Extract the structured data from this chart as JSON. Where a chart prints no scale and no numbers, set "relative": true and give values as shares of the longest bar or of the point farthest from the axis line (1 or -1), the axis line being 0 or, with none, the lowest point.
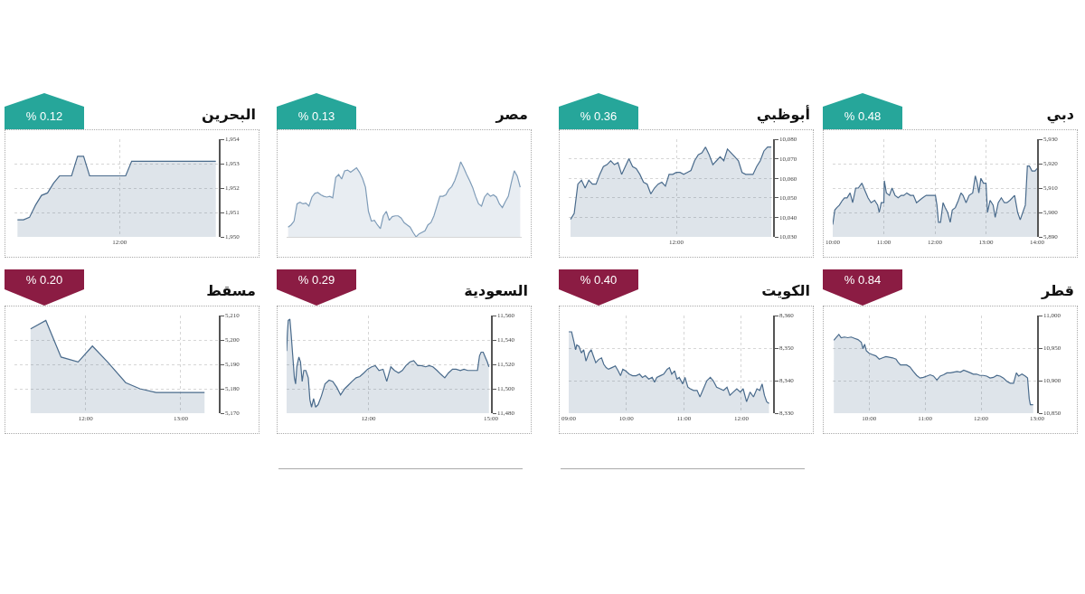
{
  "chart_data": [
    {
      "type": "area",
      "title": "البحرين",
      "annotations": [
        "% 0.12"
      ],
      "color": "#4a6b8c",
      "categories": [
        null,
        null,
        null,
        null,
        null,
        null,
        null,
        null,
        null,
        null,
        null,
        null,
        null,
        null,
        null,
        null,
        null,
        "12:00",
        null,
        null,
        null,
        null,
        null,
        null,
        null,
        null,
        null,
        null,
        null,
        null,
        null,
        null,
        null,
        null
      ],
      "values": [
        1950.7,
        1950.7,
        1950.8,
        1951.3,
        1951.7,
        1951.8,
        1952.2,
        1952.5,
        1952.5,
        1952.5,
        1953.3,
        1953.3,
        1952.5,
        1952.5,
        1952.5,
        1952.5,
        1952.5,
        1952.5,
        1952.5,
        1953.1,
        1953.1,
        1953.1,
        1953.1,
        1953.1,
        1953.1,
        1953.1,
        1953.1,
        1953.1,
        1953.1,
        1953.1,
        1953.1,
        1953.1,
        1953.1,
        1953.1
      ],
      "ylim": [
        1950,
        1954
      ],
      "yticks": [
        {
          "value": 1950,
          "label": "1,950"
        },
        {
          "value": 1951,
          "label": "1,951"
        },
        {
          "value": 1952,
          "label": "1,952"
        },
        {
          "value": 1953,
          "label": "1,953"
        },
        {
          "value": 1954,
          "label": "1,954"
        }
      ],
      "grid": true
    },
    {
      "type": "area",
      "title": "مصر",
      "annotations": [
        "% 0.13"
      ],
      "color": "#7f9cb8",
      "relative": true,
      "categories": [
        null,
        null,
        null,
        null,
        null,
        null,
        null,
        null,
        null,
        null,
        null,
        null,
        null,
        null,
        null,
        null,
        null,
        null,
        null,
        null,
        null,
        null,
        null,
        null,
        null,
        null,
        null,
        null,
        null,
        null,
        null,
        null,
        null,
        null,
        null,
        null,
        null,
        null,
        null,
        null,
        null,
        null,
        null,
        null,
        null,
        null,
        null,
        null,
        null,
        null,
        null,
        null,
        null,
        null,
        null,
        null,
        null,
        null,
        null,
        null,
        null,
        null,
        null,
        null,
        null,
        null,
        null,
        null,
        null,
        null,
        null,
        null,
        null,
        null,
        null,
        null,
        null,
        null,
        null
      ],
      "values": [
        0.13,
        0.16,
        0.21,
        0.44,
        0.46,
        0.44,
        0.45,
        0.41,
        0.53,
        0.58,
        0.59,
        0.56,
        0.54,
        0.53,
        0.54,
        0.52,
        0.79,
        0.83,
        0.77,
        0.88,
        0.89,
        0.86,
        0.89,
        0.92,
        0.86,
        0.78,
        0.66,
        0.34,
        0.21,
        0.22,
        0.16,
        0.11,
        0.28,
        0.34,
        0.22,
        0.27,
        0.28,
        0.28,
        0.25,
        0.19,
        0.16,
        0.13,
        0.06,
        0,
        0.04,
        0.06,
        0.08,
        0.16,
        0.19,
        0.28,
        0.41,
        0.54,
        0.54,
        0.56,
        0.63,
        0.67,
        0.75,
        0.86,
        1,
        0.92,
        0.83,
        0.75,
        0.66,
        0.54,
        0.44,
        0.41,
        0.53,
        0.58,
        0.54,
        0.56,
        0.53,
        0.44,
        0.39,
        0.47,
        0.54,
        0.72,
        0.88,
        0.81,
        0.66
      ]
    },
    {
      "type": "area",
      "title": "أبوظبي",
      "annotations": [
        "% 0.36"
      ],
      "color": "#4a6b8c",
      "categories": [
        null,
        null,
        null,
        null,
        null,
        null,
        null,
        null,
        null,
        null,
        null,
        null,
        null,
        null,
        null,
        null,
        null,
        null,
        null,
        null,
        null,
        null,
        null,
        null,
        null,
        null,
        null,
        null,
        null,
        "12:00",
        null,
        null,
        null,
        null,
        null,
        null,
        null,
        null,
        null,
        null,
        null,
        null,
        null,
        null,
        null,
        null,
        null,
        null,
        null,
        null,
        null,
        null,
        null,
        null,
        null,
        null
      ],
      "values": [
        10039,
        10042,
        10057,
        10059,
        10055,
        10059,
        10057,
        10057,
        10062,
        10066,
        10067,
        10069,
        10067,
        10068,
        10062,
        10066,
        10070,
        10066,
        10065,
        10062,
        10058,
        10057,
        10052,
        10055,
        10057,
        10058,
        10056,
        10062,
        10062,
        10063,
        10063,
        10062,
        10063,
        10064,
        10069,
        10072,
        10073,
        10076,
        10072,
        10067,
        10069,
        10071,
        10069,
        10075,
        10073,
        10071,
        10069,
        10063,
        10062,
        10062,
        10062,
        10066,
        10069,
        10074,
        10076,
        10076
      ],
      "ylim": [
        10030,
        10080
      ],
      "yticks": [
        {
          "value": 10030,
          "label": "10,030"
        },
        {
          "value": 10040,
          "label": "10,040"
        },
        {
          "value": 10050,
          "label": "10,050"
        },
        {
          "value": 10060,
          "label": "10,060"
        },
        {
          "value": 10070,
          "label": "10,070"
        },
        {
          "value": 10080,
          "label": "10,080"
        }
      ],
      "grid": true
    },
    {
      "type": "area",
      "title": "دبي",
      "annotations": [
        "% 0.48"
      ],
      "color": "#4a6b8c",
      "x": [
        10.0,
        10.04,
        10.08,
        10.13,
        10.19,
        10.23,
        10.28,
        10.34,
        10.39,
        10.45,
        10.5,
        10.57,
        10.63,
        10.69,
        10.75,
        10.82,
        10.88,
        10.91,
        10.95,
        11.0,
        11.01,
        11.05,
        11.11,
        11.16,
        11.22,
        11.28,
        11.34,
        11.39,
        11.45,
        11.52,
        11.58,
        11.64,
        11.7,
        11.76,
        11.83,
        11.92,
        12.01,
        12.04,
        12.07,
        12.11,
        12.16,
        12.2,
        12.25,
        12.3,
        12.34,
        12.4,
        12.46,
        12.51,
        12.55,
        12.61,
        12.67,
        12.74,
        12.79,
        12.83,
        12.86,
        12.9,
        12.95,
        13.0,
        13.03,
        13.08,
        13.14,
        13.18,
        13.24,
        13.3,
        13.36,
        13.41,
        13.47,
        13.56,
        13.62,
        13.67,
        13.72,
        13.77,
        13.81,
        13.85,
        13.9,
        13.96,
        14.0
      ],
      "values": [
        5895,
        5901,
        5902,
        5903,
        5905,
        5906,
        5906,
        5908,
        5904,
        5910,
        5910,
        5912,
        5909,
        5906,
        5904,
        5905,
        5903,
        5900,
        5904,
        5904,
        5913,
        5908,
        5907,
        5910,
        5907,
        5906,
        5907,
        5907,
        5908,
        5907,
        5907,
        5904,
        5905,
        5906,
        5907,
        5907,
        5907,
        5903,
        5896,
        5896,
        5904,
        5902,
        5900,
        5896,
        5901,
        5902,
        5905,
        5908,
        5907,
        5904,
        5907,
        5908,
        5915,
        5912,
        5908,
        5914,
        5912,
        5912,
        5900,
        5905,
        5903,
        5898,
        5904,
        5906,
        5904,
        5904,
        5905,
        5907,
        5900,
        5897,
        5900,
        5903,
        5919,
        5919,
        5917,
        5917,
        5918
      ],
      "xlim": [
        10,
        14
      ],
      "xticks": [
        {
          "value": 10,
          "label": "10:00"
        },
        {
          "value": 11,
          "label": "11:00"
        },
        {
          "value": 12,
          "label": "12:00"
        },
        {
          "value": 13,
          "label": "13:00"
        },
        {
          "value": 14,
          "label": "14:00"
        }
      ],
      "ylim": [
        5890,
        5930
      ],
      "yticks": [
        {
          "value": 5890,
          "label": "5,890"
        },
        {
          "value": 5900,
          "label": "5,900"
        },
        {
          "value": 5910,
          "label": "5,910"
        },
        {
          "value": 5920,
          "label": "5,920"
        },
        {
          "value": 5930,
          "label": "5,930"
        }
      ],
      "grid": true
    },
    {
      "type": "area",
      "title": "مسقط",
      "annotations": [
        "% 0.20"
      ],
      "color": "#4a6b8c",
      "x": [
        11.42,
        11.58,
        11.74,
        11.92,
        12.07,
        12.23,
        12.42,
        12.57,
        12.74,
        13.25
      ],
      "values": [
        5204.5,
        5208,
        5193,
        5191,
        5197.5,
        5191,
        5182.5,
        5180,
        5178.5,
        5178.5
      ],
      "xlim": [
        11.25,
        13.4
      ],
      "xticks": [
        {
          "value": 12,
          "label": "12:00"
        },
        {
          "value": 13,
          "label": "13:00"
        }
      ],
      "ylim": [
        5170,
        5210
      ],
      "yticks": [
        {
          "value": 5170,
          "label": "5,170"
        },
        {
          "value": 5180,
          "label": "5,180"
        },
        {
          "value": 5190,
          "label": "5,190"
        },
        {
          "value": 5200,
          "label": "5,200"
        },
        {
          "value": 5210,
          "label": "5,210"
        }
      ],
      "grid": true
    },
    {
      "type": "area",
      "title": "السعودية",
      "annotations": [
        "% 0.29"
      ],
      "color": "#4a6b8c",
      "x": [
        10.0,
        10.02,
        10.04,
        10.08,
        10.11,
        10.15,
        10.19,
        10.22,
        10.25,
        10.3,
        10.34,
        10.38,
        10.42,
        10.47,
        10.53,
        10.57,
        10.61,
        10.66,
        10.71,
        10.77,
        10.85,
        10.94,
        11.04,
        11.13,
        11.23,
        11.32,
        11.42,
        11.51,
        11.6,
        11.7,
        11.79,
        11.89,
        11.98,
        12.08,
        12.17,
        12.26,
        12.36,
        12.45,
        12.55,
        12.64,
        12.74,
        12.83,
        12.92,
        13.02,
        13.11,
        13.21,
        13.3,
        13.4,
        13.49,
        13.58,
        13.68,
        13.77,
        13.87,
        13.96,
        14.06,
        14.15,
        14.25,
        14.34,
        14.43,
        14.53,
        14.62,
        14.67,
        14.72,
        14.76,
        14.81,
        14.86,
        14.91,
        14.95
      ],
      "values": [
        11531,
        11546,
        11556,
        11557,
        11545,
        11527,
        11509,
        11504,
        11518,
        11526,
        11522,
        11506,
        11515,
        11515,
        11509,
        11491,
        11485,
        11492,
        11485,
        11487,
        11494,
        11504,
        11507,
        11506,
        11501,
        11495,
        11500,
        11503,
        11506,
        11509,
        11510,
        11513,
        11516,
        11518,
        11519,
        11515,
        11516,
        11506,
        11518,
        11515,
        11513,
        11515,
        11519,
        11522,
        11523,
        11519,
        11519,
        11518,
        11519,
        11518,
        11515,
        11512,
        11509,
        11513,
        11516,
        11516,
        11515,
        11516,
        11515,
        11515,
        11515,
        11515,
        11527,
        11530,
        11530,
        11526,
        11522,
        11518
      ],
      "xlim": [
        10,
        15
      ],
      "xticks": [
        {
          "value": 12,
          "label": "12:00"
        },
        {
          "value": 15,
          "label": "15:00"
        }
      ],
      "ylim": [
        11480,
        11560
      ],
      "yticks": [
        {
          "value": 11480,
          "label": "11,480"
        },
        {
          "value": 11500,
          "label": "11,500"
        },
        {
          "value": 11520,
          "label": "11,520"
        },
        {
          "value": 11540,
          "label": "11,540"
        },
        {
          "value": 11560,
          "label": "11,560"
        }
      ],
      "grid": true
    },
    {
      "type": "area",
      "title": "الكويت",
      "annotations": [
        "% 0.40"
      ],
      "color": "#4a6b8c",
      "x": [
        9.0,
        9.05,
        9.09,
        9.12,
        9.14,
        9.18,
        9.22,
        9.26,
        9.3,
        9.35,
        9.39,
        9.43,
        9.47,
        9.52,
        9.57,
        9.61,
        9.65,
        9.69,
        9.75,
        9.81,
        9.86,
        9.9,
        9.94,
        9.99,
        10.05,
        10.11,
        10.17,
        10.23,
        10.28,
        10.33,
        10.39,
        10.45,
        10.49,
        10.53,
        10.59,
        10.65,
        10.71,
        10.75,
        10.79,
        10.84,
        10.88,
        10.92,
        10.98,
        11.02,
        11.07,
        11.11,
        11.17,
        11.23,
        11.28,
        11.34,
        11.4,
        11.46,
        11.51,
        11.57,
        11.63,
        11.69,
        11.75,
        11.8,
        11.86,
        11.92,
        11.98,
        12.03,
        12.09,
        12.15,
        12.21,
        12.27,
        12.32,
        12.36,
        12.4,
        12.44,
        12.48
      ],
      "values": [
        8355,
        8355,
        8352,
        8349.5,
        8351,
        8350.5,
        8348.5,
        8349.5,
        8346,
        8348.5,
        8349.5,
        8347.5,
        8345.5,
        8346.5,
        8347,
        8345,
        8344,
        8343.5,
        8344,
        8344.5,
        8343,
        8341.5,
        8343.5,
        8343,
        8342,
        8341.5,
        8341.5,
        8342,
        8341,
        8341.5,
        8340.5,
        8341,
        8339.5,
        8341,
        8341.5,
        8342,
        8343.5,
        8344,
        8342,
        8343,
        8340.5,
        8341,
        8339,
        8341,
        8338,
        8337.5,
        8337,
        8337,
        8335,
        8337.5,
        8340,
        8341,
        8340,
        8338,
        8337.5,
        8337,
        8338,
        8335.5,
        8336.5,
        8337.5,
        8336.5,
        8337.5,
        8333.5,
        8336.5,
        8335,
        8337.5,
        8337,
        8339,
        8335.5,
        8333.5,
        8333
      ],
      "xlim": [
        9,
        12.55
      ],
      "xticks": [
        {
          "value": 9,
          "label": "09:00"
        },
        {
          "value": 10,
          "label": "10:00"
        },
        {
          "value": 11,
          "label": "11:00"
        },
        {
          "value": 12,
          "label": "12:00"
        }
      ],
      "ylim": [
        8330,
        8360
      ],
      "yticks": [
        {
          "value": 8330,
          "label": "8,330"
        },
        {
          "value": 8340,
          "label": "8,340"
        },
        {
          "value": 8350,
          "label": "8,350"
        },
        {
          "value": 8360,
          "label": "8,360"
        }
      ],
      "grid": true
    },
    {
      "type": "area",
      "title": "قطر",
      "annotations": [
        "% 0.84"
      ],
      "color": "#4a6b8c",
      "x": [
        9.37,
        9.41,
        9.46,
        9.5,
        9.56,
        9.62,
        9.68,
        9.74,
        9.8,
        9.86,
        9.89,
        9.92,
        9.95,
        10.0,
        10.06,
        10.12,
        10.18,
        10.24,
        10.3,
        10.36,
        10.42,
        10.48,
        10.52,
        10.56,
        10.61,
        10.67,
        10.73,
        10.79,
        10.85,
        10.91,
        10.97,
        11.03,
        11.09,
        11.15,
        11.21,
        11.27,
        11.33,
        11.39,
        11.45,
        11.51,
        11.57,
        11.63,
        11.69,
        11.75,
        11.81,
        11.86,
        11.92,
        11.98,
        12.04,
        12.1,
        12.16,
        12.22,
        12.28,
        12.34,
        12.4,
        12.46,
        12.52,
        12.58,
        12.63,
        12.67,
        12.73,
        12.79,
        12.83,
        12.86,
        12.88,
        12.93
      ],
      "values": [
        10962,
        10966,
        10971,
        10966,
        10967,
        10966,
        10967,
        10965,
        10963,
        10959,
        10949,
        10956,
        10946,
        10942,
        10940,
        10938,
        10933,
        10935,
        10937,
        10936,
        10935,
        10933,
        10928,
        10924,
        10924,
        10924,
        10921,
        10914,
        10908,
        10904,
        10905,
        10907,
        10909,
        10907,
        10901,
        10907,
        10909,
        10912,
        10912,
        10913,
        10914,
        10913,
        10916,
        10914,
        10912,
        10910,
        10910,
        10908,
        10908,
        10907,
        10904,
        10905,
        10908,
        10907,
        10904,
        10899,
        10896,
        10896,
        10912,
        10907,
        10910,
        10907,
        10904,
        10872,
        10863,
        10863
      ],
      "xlim": [
        9.35,
        13
      ],
      "xticks": [
        {
          "value": 10,
          "label": "10:00"
        },
        {
          "value": 11,
          "label": "11:00"
        },
        {
          "value": 12,
          "label": "12:00"
        },
        {
          "value": 13,
          "label": "13:00"
        }
      ],
      "ylim": [
        10850,
        11000
      ],
      "yticks": [
        {
          "value": 10850,
          "label": "10,850"
        },
        {
          "value": 10900,
          "label": "10,900"
        },
        {
          "value": 10950,
          "label": "10,950"
        },
        {
          "value": 11000,
          "label": "11,000"
        }
      ],
      "grid": true
    }
  ]
}
